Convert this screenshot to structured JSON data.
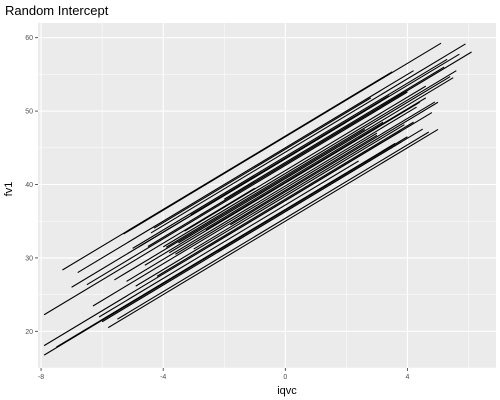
{
  "chart_data": {
    "type": "line",
    "title": "Random Intercept",
    "xlabel": "iqvc",
    "ylabel": "fv1",
    "xlim": [
      -8.1,
      6.9
    ],
    "ylim": [
      15,
      62
    ],
    "xticks": [
      -8,
      -4,
      0,
      4
    ],
    "xtick_labels": [
      "-8",
      "-4",
      "0",
      "4"
    ],
    "yticks": [
      20,
      30,
      40,
      50,
      60
    ],
    "ytick_labels": [
      "20",
      "30",
      "40",
      "50",
      "60"
    ],
    "grid": true,
    "legend": "none",
    "slope": 2.5,
    "colors": {
      "panel": "#ebebeb",
      "grid_major": "#ffffff",
      "line": "#000000",
      "tick_text": "#4d4d4d"
    },
    "series": [
      {
        "x_start": -7.9,
        "x_end": -1.0,
        "intercept": 42.0
      },
      {
        "x_start": -7.9,
        "x_end": 4.0,
        "intercept": 36.5
      },
      {
        "x_start": -7.9,
        "x_end": 3.8,
        "intercept": 37.8
      },
      {
        "x_start": -7.5,
        "x_end": 3.6,
        "intercept": 36.6
      },
      {
        "x_start": -7.3,
        "x_end": 3.5,
        "intercept": 46.6
      },
      {
        "x_start": -7.0,
        "x_end": 2.0,
        "intercept": 43.5
      },
      {
        "x_start": -6.8,
        "x_end": 4.2,
        "intercept": 45.0
      },
      {
        "x_start": -6.0,
        "x_end": 4.5,
        "intercept": 36.3
      },
      {
        "x_start": -5.8,
        "x_end": 5.0,
        "intercept": 35.0
      },
      {
        "x_start": -5.5,
        "x_end": 4.7,
        "intercept": 35.4
      },
      {
        "x_start": -5.3,
        "x_end": 5.1,
        "intercept": 46.5
      },
      {
        "x_start": -5.0,
        "x_end": 5.3,
        "intercept": 43.8
      },
      {
        "x_start": -4.8,
        "x_end": 5.7,
        "intercept": 43.5
      },
      {
        "x_start": -4.5,
        "x_end": 6.1,
        "intercept": 42.8
      },
      {
        "x_start": -4.4,
        "x_end": 5.9,
        "intercept": 44.4
      },
      {
        "x_start": -4.0,
        "x_end": 5.6,
        "intercept": 41.5
      },
      {
        "x_start": -3.8,
        "x_end": 4.4,
        "intercept": 40.2
      },
      {
        "x_start": -3.5,
        "x_end": 5.5,
        "intercept": 40.8
      },
      {
        "x_start": -3.0,
        "x_end": 5.0,
        "intercept": 38.7
      },
      {
        "x_start": -2.5,
        "x_end": 4.8,
        "intercept": 37.8
      },
      {
        "x_start": -2.2,
        "x_end": 3.8,
        "intercept": 36.3
      },
      {
        "x_start": -6.5,
        "x_end": 4.0,
        "intercept": 42.6
      },
      {
        "x_start": -6.3,
        "x_end": 3.0,
        "intercept": 39.2
      },
      {
        "x_start": -4.2,
        "x_end": 4.2,
        "intercept": 38.0
      },
      {
        "x_start": -3.3,
        "x_end": 4.6,
        "intercept": 41.9
      },
      {
        "x_start": -2.8,
        "x_end": 4.0,
        "intercept": 42.8
      },
      {
        "x_start": -4.6,
        "x_end": 3.2,
        "intercept": 40.5
      },
      {
        "x_start": -3.6,
        "x_end": 3.0,
        "intercept": 39.5
      },
      {
        "x_start": -5.6,
        "x_end": 2.6,
        "intercept": 41.0
      },
      {
        "x_start": -2.0,
        "x_end": 5.2,
        "intercept": 43.0
      },
      {
        "x_start": -5.2,
        "x_end": 4.3,
        "intercept": 39.8
      },
      {
        "x_start": -4.9,
        "x_end": 3.9,
        "intercept": 38.4
      },
      {
        "x_start": -3.9,
        "x_end": 5.4,
        "intercept": 41.2
      },
      {
        "x_start": -2.6,
        "x_end": 4.6,
        "intercept": 40.3
      },
      {
        "x_start": -6.1,
        "x_end": 2.4,
        "intercept": 37.2
      },
      {
        "x_start": -3.1,
        "x_end": 3.4,
        "intercept": 43.6
      },
      {
        "x_start": -1.8,
        "x_end": 4.9,
        "intercept": 39.0
      },
      {
        "x_start": -4.3,
        "x_end": 2.8,
        "intercept": 44.8
      }
    ]
  }
}
